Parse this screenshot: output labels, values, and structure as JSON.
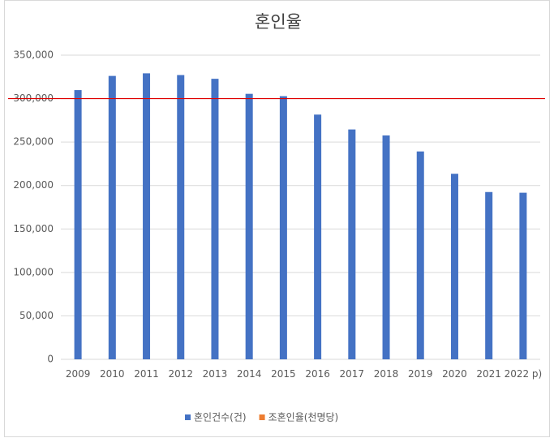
{
  "chart_data": {
    "type": "bar",
    "title": "혼인율",
    "categories": [
      "2009",
      "2010",
      "2011",
      "2012",
      "2013",
      "2014",
      "2015",
      "2016",
      "2017",
      "2018",
      "2019",
      "2020",
      "2021",
      "2022 p)"
    ],
    "series": [
      {
        "name": "혼인건수(건)",
        "color": "#4472c4",
        "values": [
          309800,
          326100,
          329100,
          327100,
          322800,
          305500,
          302800,
          281600,
          264500,
          257600,
          239200,
          213500,
          192500,
          191700
        ]
      },
      {
        "name": "조혼인율(천명당)",
        "color": "#ed7d31",
        "values": [
          null,
          null,
          null,
          null,
          null,
          null,
          null,
          null,
          null,
          null,
          null,
          null,
          null,
          null
        ]
      }
    ],
    "reference_line": {
      "value": 300000,
      "color": "#e00000"
    },
    "ylim": [
      0,
      350000
    ],
    "yticks": [
      0,
      {
        "value": 50000,
        "label": "50,000"
      },
      {
        "value": 100000,
        "label": "100,000"
      },
      {
        "value": 150000,
        "label": "150,000"
      },
      {
        "value": 200000,
        "label": "200,000"
      },
      {
        "value": 250000,
        "label": "250,000"
      },
      {
        "value": 300000,
        "label": "300,000"
      },
      {
        "value": 350000,
        "label": "350,000"
      }
    ],
    "grid": true
  }
}
